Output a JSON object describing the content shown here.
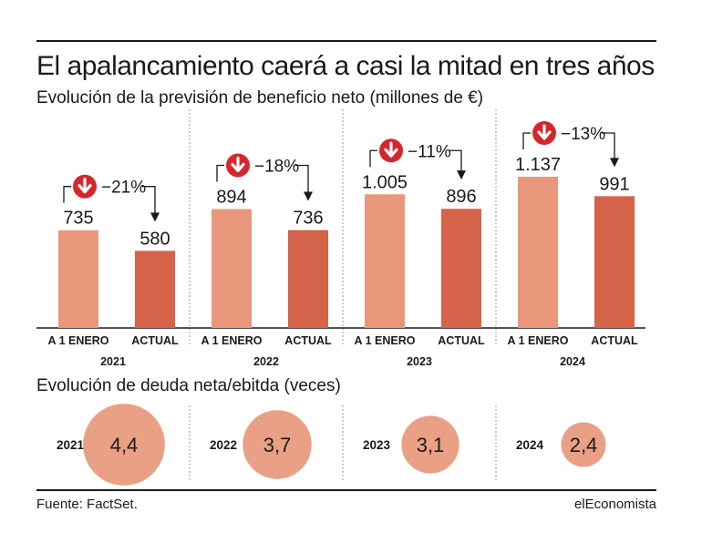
{
  "title": "El apalancamiento caerá a casi la mitad en tres años",
  "subtitle": "Evolución de la previsión de beneficio neto (millones de €)",
  "debt_subtitle": "Evolución de deuda neta/ebitda (veces)",
  "source": "Fuente: FactSet.",
  "brand": "elEconomista",
  "colors": {
    "bar_initial": "#e9977a",
    "bar_actual": "#d4634a",
    "circle": "#e9a085",
    "badge": "#d7262b",
    "divider": "#999999"
  },
  "chart_data": [
    {
      "type": "bar",
      "title": "Evolución de la previsión de beneficio neto (millones de €)",
      "category_labels": [
        "A 1 ENERO",
        "ACTUAL"
      ],
      "groups": [
        {
          "year": "2021",
          "initial": 735,
          "initial_label": "735",
          "actual": 580,
          "actual_label": "580",
          "change": "−21%"
        },
        {
          "year": "2022",
          "initial": 894,
          "initial_label": "894",
          "actual": 736,
          "actual_label": "736",
          "change": "−18%"
        },
        {
          "year": "2023",
          "initial": 1005,
          "initial_label": "1.005",
          "actual": 896,
          "actual_label": "896",
          "change": "−11%"
        },
        {
          "year": "2024",
          "initial": 1137,
          "initial_label": "1.137",
          "actual": 991,
          "actual_label": "991",
          "change": "−13%"
        }
      ],
      "icon": "down-arrow-icon"
    },
    {
      "type": "bubble",
      "title": "Evolución de deuda neta/ebitda (veces)",
      "items": [
        {
          "year": "2021",
          "value": 4.4,
          "label": "4,4"
        },
        {
          "year": "2022",
          "value": 3.7,
          "label": "3,7"
        },
        {
          "year": "2023",
          "value": 3.1,
          "label": "3,1"
        },
        {
          "year": "2024",
          "value": 2.4,
          "label": "2,4"
        }
      ]
    }
  ]
}
